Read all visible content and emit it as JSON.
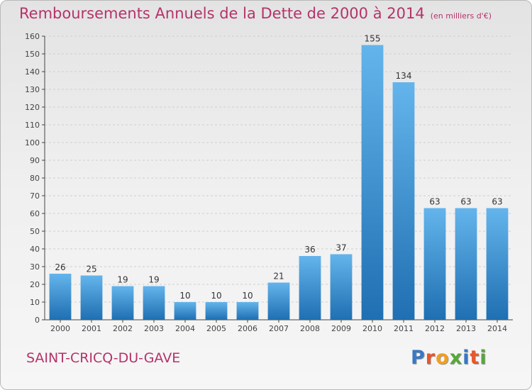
{
  "header": {
    "title": "Remboursements Annuels de la Dette de 2000 à 2014",
    "subtitle": "(en milliers d'€)"
  },
  "footer": {
    "commune": "SAINT-CRICQ-DU-GAVE",
    "logo_text": "Proxiti",
    "logo_colors": [
      "#3a78c2",
      "#e8572a",
      "#f0a020",
      "#57a83a",
      "#3a78c2",
      "#e8572a",
      "#57a83a"
    ]
  },
  "colors": {
    "bar_light": "#64b4ec",
    "bar_dark": "#1f6fb2",
    "text": "#b5336a",
    "axis": "#444444",
    "grid": "#cfcfcf"
  },
  "chart_data": {
    "type": "bar",
    "categories": [
      "2000",
      "2001",
      "2002",
      "2003",
      "2004",
      "2005",
      "2006",
      "2007",
      "2008",
      "2009",
      "2010",
      "2011",
      "2012",
      "2013",
      "2014"
    ],
    "values": [
      26,
      25,
      19,
      19,
      10,
      10,
      10,
      21,
      36,
      37,
      155,
      134,
      63,
      63,
      63
    ],
    "ylim": [
      0,
      160
    ],
    "yticks": [
      0,
      10,
      20,
      30,
      40,
      50,
      60,
      70,
      80,
      90,
      100,
      110,
      120,
      130,
      140,
      150,
      160
    ],
    "grid": true,
    "data_labels": true
  }
}
